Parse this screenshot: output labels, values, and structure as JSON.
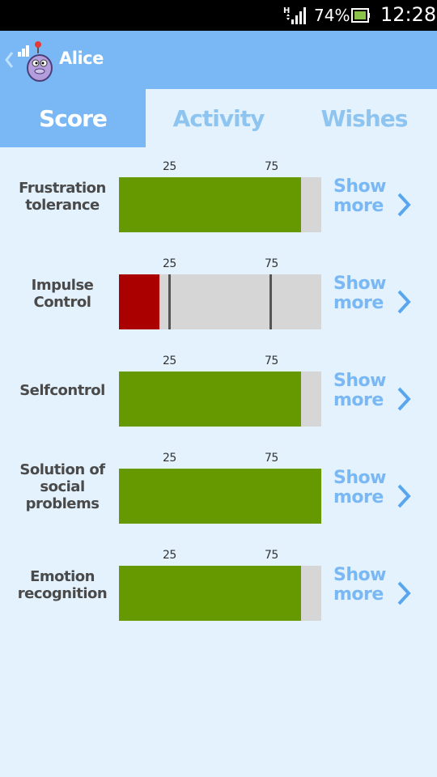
{
  "status_bar": {
    "battery_percent": "74%",
    "time": "12:28"
  },
  "action_bar": {
    "title": "Alice"
  },
  "tabs": [
    {
      "label": "Score",
      "active": true
    },
    {
      "label": "Activity",
      "active": false
    },
    {
      "label": "Wishes",
      "active": false
    }
  ],
  "score_rows": [
    {
      "label": "Frustration tolerance",
      "tick_labels": [
        "25",
        "75"
      ],
      "value_pct": 90,
      "color": "#669900",
      "show_more": "Show more"
    },
    {
      "label": "Impulse Control",
      "tick_labels": [
        "25",
        "75"
      ],
      "value_pct": 20,
      "color": "#aa0000",
      "show_more": "Show more"
    },
    {
      "label": "Selfcontrol",
      "tick_labels": [
        "25",
        "75"
      ],
      "value_pct": 90,
      "color": "#669900",
      "show_more": "Show more"
    },
    {
      "label": "Solution of social problems",
      "tick_labels": [
        "25",
        "75"
      ],
      "value_pct": 100,
      "color": "#669900",
      "show_more": "Show more"
    },
    {
      "label": "Emotion recognition",
      "tick_labels": [
        "25",
        "75"
      ],
      "value_pct": 90,
      "color": "#669900",
      "show_more": "Show more"
    }
  ],
  "colors": {
    "accent": "#7ab8f5",
    "background": "#e3f2fd",
    "track": "#d6d6d6"
  }
}
